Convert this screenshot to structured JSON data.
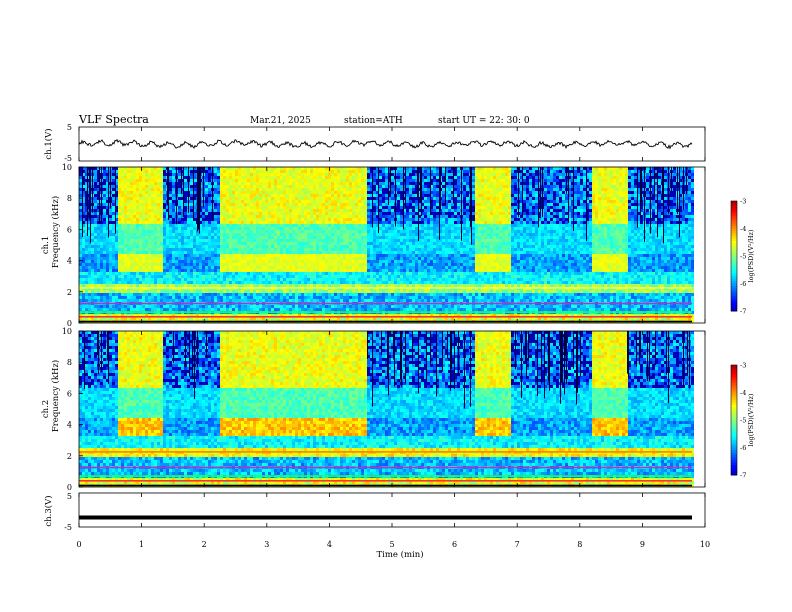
{
  "header": {
    "title": "VLF  Spectra",
    "date": "Mar.21, 2025",
    "station": "station=ATH",
    "start": "start  UT  =   22: 30: 0"
  },
  "chart_data": [
    {
      "type": "line",
      "name": "ch1-waveform",
      "ylabel": "ch.1(V)",
      "ylim": [
        -5,
        5
      ],
      "yticks": [
        5,
        -5
      ],
      "xlim": [
        0,
        10
      ]
    },
    {
      "type": "heatmap",
      "name": "ch1-spectrogram",
      "ylabel_top": "ch.1",
      "ylabel": "Frequency  (kHz)",
      "ylim": [
        0,
        10
      ],
      "yticks": [
        10,
        8,
        6,
        4,
        2,
        0
      ],
      "xlim": [
        0,
        10
      ],
      "colorbar": {
        "label": "log(PSD)(V²/Hz)",
        "range": [
          -7,
          -3
        ],
        "ticks": [
          -3,
          -4,
          -5,
          -6,
          -7
        ]
      },
      "bright_intervals_min": [
        [
          0.6,
          1.3
        ],
        [
          2.25,
          4.6
        ],
        [
          6.3,
          6.9
        ],
        [
          8.15,
          8.75
        ]
      ]
    },
    {
      "type": "heatmap",
      "name": "ch2-spectrogram",
      "ylabel_top": "ch.2",
      "ylabel": "Frequency  (kHz)",
      "ylim": [
        0,
        10
      ],
      "yticks": [
        10,
        8,
        6,
        4,
        2,
        0
      ],
      "xlim": [
        0,
        10
      ],
      "colorbar": {
        "label": "log(PSD)(V²/Hz)",
        "range": [
          -7,
          -3
        ],
        "ticks": [
          -3,
          -4,
          -5,
          -6,
          -7
        ]
      },
      "bright_intervals_min": [
        [
          0.6,
          1.3
        ],
        [
          2.25,
          4.6
        ],
        [
          6.3,
          6.9
        ],
        [
          8.15,
          8.75
        ]
      ]
    },
    {
      "type": "line",
      "name": "ch3-waveform",
      "ylabel": "ch.3(V)",
      "ylim": [
        -5,
        5
      ],
      "yticks": [
        5,
        -5
      ],
      "xlim": [
        0,
        10
      ],
      "xlabel": "Time  (min)",
      "xticks": [
        0,
        1,
        2,
        3,
        4,
        5,
        6,
        7,
        8,
        9,
        10
      ],
      "level_V": -2.2
    }
  ]
}
